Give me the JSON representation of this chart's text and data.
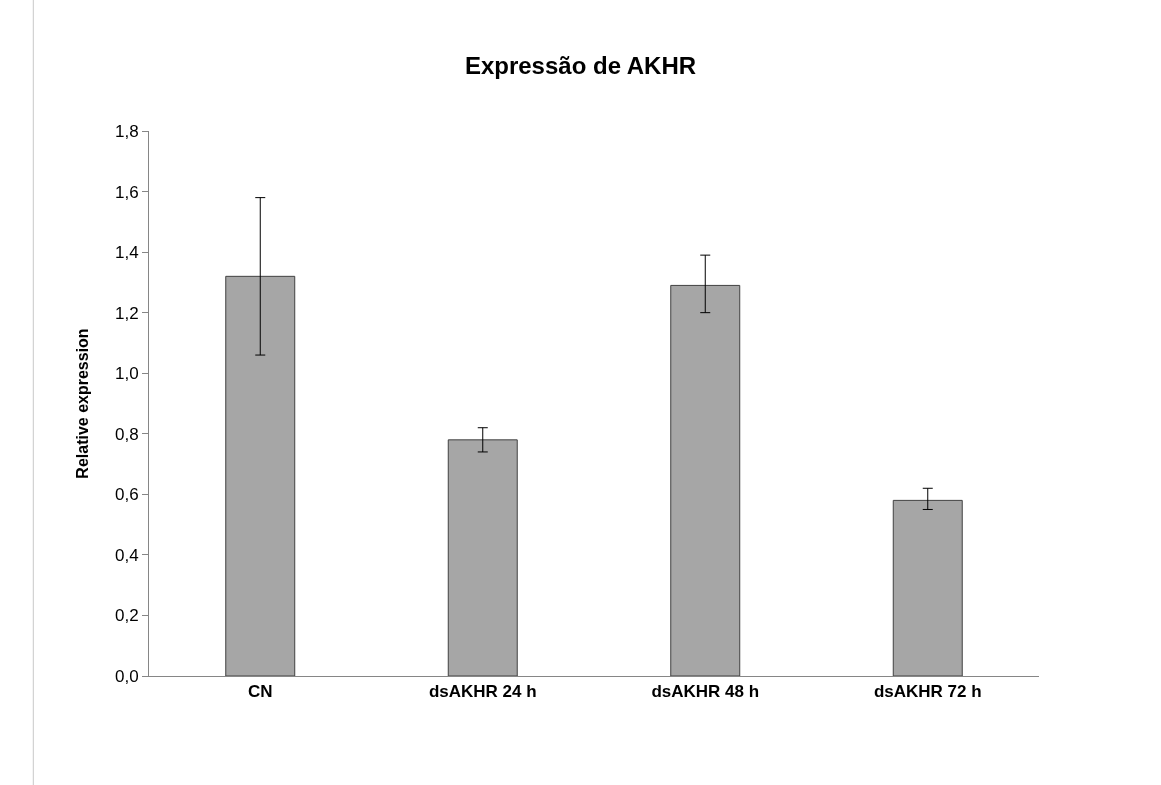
{
  "chart_data": {
    "type": "bar",
    "title": "Expressão de AKHR",
    "ylabel": "Relative expression",
    "categories": [
      "CN",
      "dsAKHR 24 h",
      "dsAKHR 48 h",
      "dsAKHR 72 h"
    ],
    "values": [
      1.32,
      0.78,
      1.29,
      0.58
    ],
    "errors": [
      [
        1.06,
        1.58
      ],
      [
        0.74,
        0.82
      ],
      [
        1.2,
        1.39
      ],
      [
        0.55,
        0.62
      ]
    ],
    "color": "#a6a6a6",
    "ylim": [
      0,
      1.8
    ],
    "yticks": [
      {
        "value": 0,
        "label": "0,0"
      },
      {
        "value": 0.2,
        "label": "0,2"
      },
      {
        "value": 0.4,
        "label": "0,4"
      },
      {
        "value": 0.6,
        "label": "0,6"
      },
      {
        "value": 0.8,
        "label": "0,8"
      },
      {
        "value": 1.0,
        "label": "1,0"
      },
      {
        "value": 1.2,
        "label": "1,2"
      },
      {
        "value": 1.4,
        "label": "1,4"
      },
      {
        "value": 1.6,
        "label": "1,6"
      },
      {
        "value": 1.8,
        "label": "1,8"
      }
    ],
    "grid": false
  }
}
